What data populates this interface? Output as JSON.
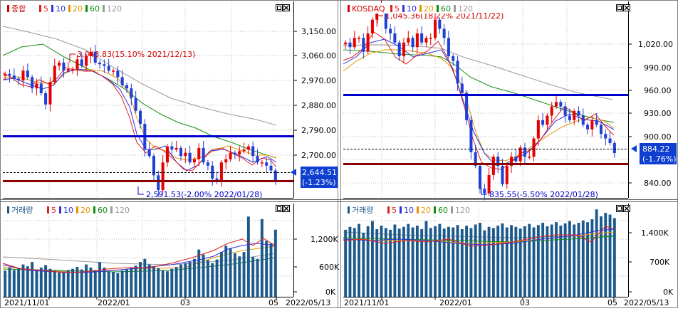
{
  "colors": {
    "up": "#e60000",
    "down": "#1f3fd6",
    "ma5": "#e02020",
    "ma10": "#3030e0",
    "ma20": "#e69500",
    "ma60": "#148c14",
    "ma120": "#9a9a9a",
    "blue_line": "#0000cc",
    "red_line": "#8b0000",
    "volume_bar": "#1c5a8c",
    "badge_bg": "#0f3fd0"
  },
  "icons": [
    "maximize-icon",
    "close-icon"
  ],
  "panels": [
    {
      "name": "kospi",
      "price_legend": {
        "title": "종합",
        "ma_labels": [
          "5",
          "10",
          "20",
          "60",
          "120"
        ]
      },
      "volume_legend": {
        "title": "거래량",
        "ma_labels": [
          "5",
          "10",
          "20",
          "60",
          "120"
        ]
      },
      "x_labels": [
        "2021/11/01",
        "2022/01",
        "03",
        "05"
      ],
      "date_label": "2022/05/13",
      "price_ticks": [
        "3,150.00",
        "3,060.00",
        "2,970.00",
        "2,880.00",
        "2,790.00",
        "2,700.00"
      ],
      "volume_ticks": [
        "1,200K",
        "600K",
        "0K"
      ],
      "current": {
        "price": "2,644.51",
        "change": "(-1.23%)"
      },
      "annotations": {
        "high": "3,043.83(15.10% 2021/12/13)",
        "low": "2,591.53(-2.00% 2022/01/28)"
      }
    },
    {
      "name": "kosdaq",
      "price_legend": {
        "title": "KOSDAQ",
        "ma_labels": [
          "5",
          "10",
          "20",
          "60",
          "120"
        ]
      },
      "volume_legend": {
        "title": "거래량",
        "ma_labels": [
          "5",
          "10",
          "20",
          "60",
          "120"
        ]
      },
      "x_labels": [
        "2021/11/01",
        "2022/01",
        "03",
        "05"
      ],
      "date_label": "2022/05/13",
      "price_ticks": [
        "1,020.00",
        "990.00",
        "960.00",
        "930.00",
        "900.00",
        "840.00"
      ],
      "volume_ticks": [
        "1,400K",
        "700K",
        "0K"
      ],
      "current": {
        "price": "884.22",
        "change": "(-1.76%)"
      },
      "annotations": {
        "high": "1,045.36(18.22% 2021/11/22)",
        "low": "835.55(-5.50% 2022/01/28)"
      }
    }
  ],
  "chart_data": [
    {
      "type": "candlestick",
      "title": "종합",
      "x_range": [
        "2021/11/01",
        "2022/05/13"
      ],
      "ylim": [
        2590,
        3200
      ],
      "series": [
        {
          "name": "종합",
          "values": [
            2975,
            2970,
            2960,
            2955,
            2985,
            2965,
            2930,
            2945,
            2915,
            2880,
            2950,
            3000,
            3010,
            2985,
            2990,
            2990,
            3020,
            3000,
            3030,
            3043,
            3010,
            3005,
            3000,
            2985,
            2985,
            2965,
            2940,
            2930,
            2900,
            2860,
            2820,
            2740,
            2720,
            2660,
            2614,
            2700,
            2750,
            2740,
            2745,
            2720,
            2730,
            2700,
            2710,
            2745,
            2700,
            2690,
            2650,
            2640,
            2700,
            2710,
            2730,
            2725,
            2735,
            2740,
            2750,
            2720,
            2700,
            2700,
            2690,
            2675,
            2645
          ]
        }
      ],
      "horizontal_lines": [
        2790,
        2655
      ],
      "high": {
        "value": 3043.83,
        "pct": "15.10%",
        "date": "2021/12/13"
      },
      "low": {
        "value": 2591.53,
        "pct": "-2.00%",
        "date": "2022/01/28"
      },
      "current": {
        "value": 2644.51,
        "pct": -1.23
      }
    },
    {
      "type": "bar",
      "title": "거래량",
      "ylim": [
        0,
        1500
      ],
      "series": [
        {
          "name": "거래량",
          "values": [
            420,
            470,
            430,
            460,
            520,
            490,
            560,
            440,
            470,
            510,
            450,
            420,
            390,
            400,
            430,
            450,
            480,
            440,
            520,
            470,
            430,
            560,
            470,
            410,
            400,
            380,
            420,
            440,
            470,
            500,
            560,
            610,
            520,
            480,
            460,
            430,
            410,
            450,
            480,
            520,
            540,
            560,
            610,
            760,
            680,
            590,
            540,
            600,
            720,
            820,
            780,
            700,
            650,
            720,
            1290,
            640,
            610,
            1250,
            900,
            860,
            1080
          ]
        }
      ]
    },
    {
      "type": "candlestick",
      "title": "KOSDAQ",
      "x_range": [
        "2021/11/01",
        "2022/05/13"
      ],
      "ylim": [
        835,
        1050
      ],
      "series": [
        {
          "name": "KOSDAQ",
          "values": [
            1005,
            1000,
            1010,
            1010,
            995,
            1015,
            1030,
            1040,
            1045,
            1020,
            1015,
            1005,
            990,
            1005,
            1010,
            1000,
            1015,
            1005,
            1010,
            1010,
            1030,
            1020,
            1010,
            990,
            985,
            960,
            950,
            920,
            885,
            870,
            845,
            840,
            860,
            880,
            870,
            850,
            870,
            880,
            875,
            890,
            880,
            880,
            900,
            920,
            915,
            925,
            935,
            940,
            935,
            925,
            920,
            930,
            925,
            915,
            910,
            920,
            915,
            905,
            900,
            895,
            884
          ]
        }
      ],
      "horizontal_lines": [
        953,
        866
      ],
      "high": {
        "value": 1045.36,
        "pct": "18.22%",
        "date": "2021/11/22"
      },
      "low": {
        "value": 835.55,
        "pct": "-5.50%",
        "date": "2022/01/28"
      },
      "current": {
        "value": 884.22,
        "pct": -1.76
      }
    },
    {
      "type": "bar",
      "title": "거래량",
      "ylim": [
        0,
        1600
      ],
      "series": [
        {
          "name": "거래량",
          "values": [
            1150,
            1200,
            1180,
            1250,
            1100,
            1210,
            1300,
            1160,
            1220,
            1180,
            1150,
            1240,
            1170,
            1200,
            1250,
            1190,
            1220,
            1160,
            1300,
            1180,
            1210,
            1250,
            1170,
            1200,
            1190,
            1230,
            1160,
            1220,
            1180,
            1240,
            1270,
            1140,
            1200,
            1180,
            1220,
            1260,
            1190,
            1230,
            1200,
            1170,
            1210,
            1250,
            1190,
            1230,
            1270,
            1210,
            1240,
            1280,
            1220,
            1260,
            1300,
            1240,
            1270,
            1310,
            1280,
            1330,
            1500,
            1380,
            1440,
            1410,
            1350
          ]
        }
      ]
    }
  ]
}
